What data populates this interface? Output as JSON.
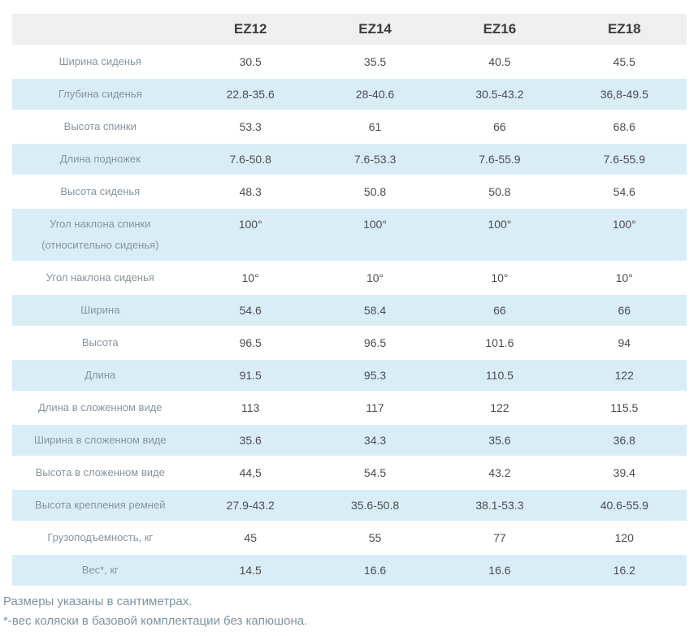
{
  "table": {
    "columns": [
      "EZ12",
      "EZ14",
      "EZ16",
      "EZ18"
    ],
    "rows": [
      {
        "label": "Ширина сиденья",
        "values": [
          "30.5",
          "35.5",
          "40.5",
          "45.5"
        ]
      },
      {
        "label": "Глубина сиденья",
        "values": [
          "22.8-35.6",
          "28-40.6",
          "30.5-43.2",
          "36,8-49.5"
        ]
      },
      {
        "label": "Высота спинки",
        "values": [
          "53.3",
          "61",
          "66",
          "68.6"
        ]
      },
      {
        "label": "Длина подножек",
        "values": [
          "7.6-50.8",
          "7.6-53.3",
          "7.6-55.9",
          "7.6-55.9"
        ]
      },
      {
        "label": "Высота сиденья",
        "values": [
          "48.3",
          "50.8",
          "50.8",
          "54.6"
        ]
      },
      {
        "label": "Угол наклона спинки\n(относительно сиденья)",
        "values": [
          "100°",
          "100°",
          "100°",
          "100°"
        ]
      },
      {
        "label": "Угол наклона сиденья",
        "values": [
          "10°",
          "10°",
          "10°",
          "10°"
        ]
      },
      {
        "label": "Ширина",
        "values": [
          "54.6",
          "58.4",
          "66",
          "66"
        ]
      },
      {
        "label": "Высота",
        "values": [
          "96.5",
          "96.5",
          "101.6",
          "94"
        ]
      },
      {
        "label": "Длина",
        "values": [
          "91.5",
          "95.3",
          "110.5",
          "122"
        ]
      },
      {
        "label": "Длина в сложенном виде",
        "values": [
          "113",
          "117",
          "122",
          "115.5"
        ]
      },
      {
        "label": "Ширина в сложенном виде",
        "values": [
          "35.6",
          "34.3",
          "35.6",
          "36.8"
        ]
      },
      {
        "label": "Высота в сложенном виде",
        "values": [
          "44,5",
          "54.5",
          "43.2",
          "39.4"
        ]
      },
      {
        "label": "Высота крепления ремней",
        "values": [
          "27.9-43.2",
          "35.6-50.8",
          "38.1-53.3",
          "40.6-55.9"
        ]
      },
      {
        "label": "Грузоподъемность, кг",
        "values": [
          "45",
          "55",
          "77",
          "120"
        ]
      },
      {
        "label": "Вес*, кг",
        "values": [
          "14.5",
          "16.6",
          "16.6",
          "16.2"
        ]
      }
    ]
  },
  "footnotes": [
    "Размеры указаны в сантиметрах.",
    "*-вес коляски в базовой комплектации без капюшона."
  ],
  "colors": {
    "row_highlight": "#d9edf7",
    "header_background": "#efefef",
    "header_text": "#3c3c3c",
    "label_text": "#8694a0",
    "value_text": "#4c4c4c",
    "footnote_text": "#7d93a3"
  }
}
